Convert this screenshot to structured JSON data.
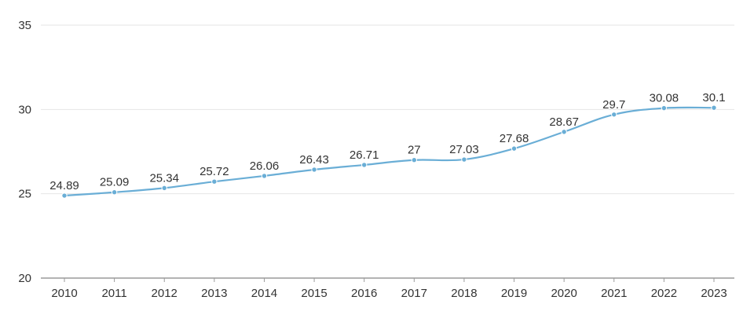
{
  "chart_data": {
    "type": "line",
    "title": "",
    "xlabel": "",
    "ylabel": "",
    "x": [
      "2010",
      "2011",
      "2012",
      "2013",
      "2014",
      "2015",
      "2016",
      "2017",
      "2018",
      "2019",
      "2020",
      "2021",
      "2022",
      "2023"
    ],
    "series": [
      {
        "values": [
          24.89,
          25.09,
          25.34,
          25.72,
          26.06,
          26.43,
          26.71,
          27,
          27.03,
          27.68,
          28.67,
          29.7,
          30.08,
          30.1
        ]
      }
    ],
    "data_labels": [
      "24.89",
      "25.09",
      "25.34",
      "25.72",
      "26.06",
      "26.43",
      "26.71",
      "27",
      "27.03",
      "27.68",
      "28.67",
      "29.7",
      "30.08",
      "30.1"
    ],
    "ylim": [
      20,
      35
    ],
    "yticks": [
      20,
      25,
      30,
      35
    ],
    "grid": true,
    "legend": "none",
    "colors": {
      "line": "#6aaed6",
      "grid": "#e6e6e6",
      "axis": "#9a9a9a",
      "text": "#333333"
    }
  }
}
